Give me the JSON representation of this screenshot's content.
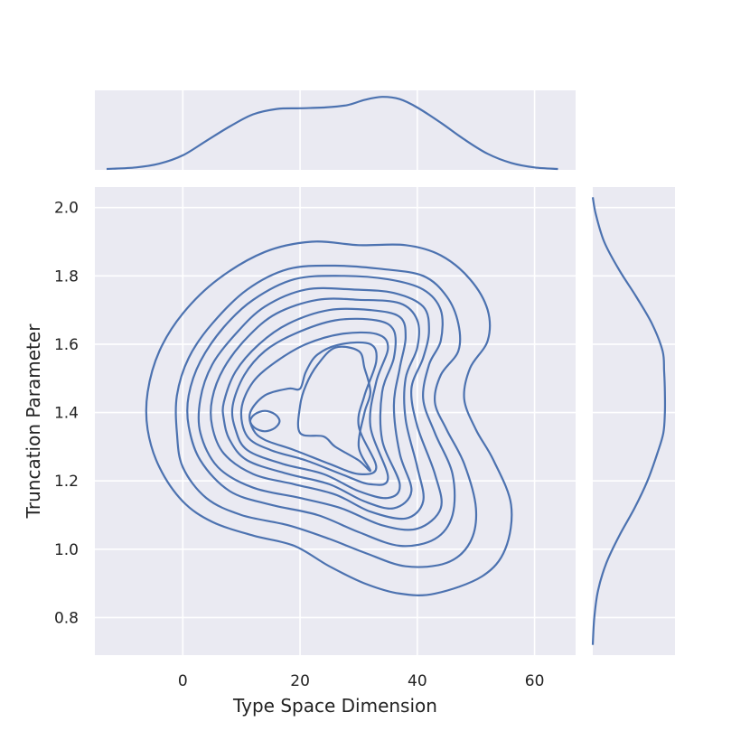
{
  "chart_data": {
    "type": "kde-jointplot",
    "title": "",
    "xlabel": "Type Space Dimension",
    "ylabel": "Truncation Parameter",
    "xlim": [
      -15,
      67
    ],
    "ylim": [
      0.69,
      2.06
    ],
    "x_ticks": [
      "0",
      "20",
      "40",
      "60"
    ],
    "x_tick_values": [
      0,
      20,
      40,
      60
    ],
    "y_ticks": [
      "0.8",
      "1.0",
      "1.2",
      "1.4",
      "1.6",
      "1.8",
      "2.0"
    ],
    "y_tick_values": [
      0.8,
      1.0,
      1.2,
      1.4,
      1.6,
      1.8,
      2.0
    ],
    "grid": true,
    "style": {
      "background": "#eaeaf2",
      "line_color": "#4c72b0",
      "grid_color": "#ffffff"
    },
    "contour_levels": 10,
    "contours": [
      [
        [
          -6,
          1.46
        ],
        [
          -4,
          1.58
        ],
        [
          0,
          1.69
        ],
        [
          6,
          1.79
        ],
        [
          14,
          1.87
        ],
        [
          22,
          1.9
        ],
        [
          30,
          1.89
        ],
        [
          38,
          1.89
        ],
        [
          44,
          1.86
        ],
        [
          49,
          1.79
        ],
        [
          52,
          1.7
        ],
        [
          52,
          1.61
        ],
        [
          49,
          1.53
        ],
        [
          48,
          1.44
        ],
        [
          50,
          1.35
        ],
        [
          53,
          1.26
        ],
        [
          56,
          1.13
        ],
        [
          55,
          1.0
        ],
        [
          51,
          0.92
        ],
        [
          43,
          0.87
        ],
        [
          37,
          0.87
        ],
        [
          31,
          0.9
        ],
        [
          25,
          0.95
        ],
        [
          19,
          1.01
        ],
        [
          12,
          1.04
        ],
        [
          5,
          1.08
        ],
        [
          0,
          1.14
        ],
        [
          -4,
          1.24
        ],
        [
          -6,
          1.35
        ],
        [
          -6,
          1.46
        ]
      ],
      [
        [
          -1,
          1.45
        ],
        [
          1,
          1.56
        ],
        [
          5,
          1.66
        ],
        [
          11,
          1.76
        ],
        [
          18,
          1.82
        ],
        [
          26,
          1.83
        ],
        [
          34,
          1.82
        ],
        [
          41,
          1.8
        ],
        [
          45,
          1.74
        ],
        [
          47,
          1.66
        ],
        [
          47,
          1.58
        ],
        [
          44,
          1.51
        ],
        [
          43,
          1.43
        ],
        [
          45,
          1.35
        ],
        [
          48,
          1.25
        ],
        [
          50,
          1.12
        ],
        [
          49,
          1.02
        ],
        [
          45,
          0.96
        ],
        [
          38,
          0.95
        ],
        [
          31,
          0.99
        ],
        [
          25,
          1.03
        ],
        [
          18,
          1.07
        ],
        [
          10,
          1.1
        ],
        [
          4,
          1.15
        ],
        [
          0,
          1.24
        ],
        [
          -1,
          1.34
        ],
        [
          -1,
          1.45
        ]
      ],
      [
        [
          1,
          1.45
        ],
        [
          3,
          1.55
        ],
        [
          7,
          1.65
        ],
        [
          12,
          1.73
        ],
        [
          19,
          1.79
        ],
        [
          27,
          1.8
        ],
        [
          35,
          1.79
        ],
        [
          41,
          1.76
        ],
        [
          44,
          1.7
        ],
        [
          44,
          1.61
        ],
        [
          42,
          1.54
        ],
        [
          41,
          1.44
        ],
        [
          43,
          1.34
        ],
        [
          46,
          1.22
        ],
        [
          46,
          1.1
        ],
        [
          43,
          1.03
        ],
        [
          37,
          1.01
        ],
        [
          30,
          1.05
        ],
        [
          23,
          1.1
        ],
        [
          15,
          1.13
        ],
        [
          8,
          1.17
        ],
        [
          3,
          1.26
        ],
        [
          1,
          1.36
        ],
        [
          1,
          1.45
        ]
      ],
      [
        [
          3,
          1.44
        ],
        [
          5,
          1.54
        ],
        [
          9,
          1.63
        ],
        [
          14,
          1.71
        ],
        [
          21,
          1.76
        ],
        [
          29,
          1.76
        ],
        [
          36,
          1.75
        ],
        [
          41,
          1.71
        ],
        [
          42,
          1.64
        ],
        [
          41,
          1.56
        ],
        [
          39,
          1.47
        ],
        [
          40,
          1.36
        ],
        [
          43,
          1.22
        ],
        [
          44,
          1.12
        ],
        [
          40,
          1.06
        ],
        [
          34,
          1.07
        ],
        [
          27,
          1.12
        ],
        [
          20,
          1.15
        ],
        [
          12,
          1.18
        ],
        [
          6,
          1.24
        ],
        [
          3,
          1.34
        ],
        [
          3,
          1.44
        ]
      ],
      [
        [
          5,
          1.44
        ],
        [
          7,
          1.53
        ],
        [
          11,
          1.62
        ],
        [
          16,
          1.69
        ],
        [
          23,
          1.73
        ],
        [
          30,
          1.73
        ],
        [
          37,
          1.72
        ],
        [
          40,
          1.67
        ],
        [
          40,
          1.59
        ],
        [
          38,
          1.5
        ],
        [
          38,
          1.38
        ],
        [
          40,
          1.24
        ],
        [
          41,
          1.14
        ],
        [
          38,
          1.09
        ],
        [
          32,
          1.11
        ],
        [
          26,
          1.16
        ],
        [
          19,
          1.19
        ],
        [
          12,
          1.22
        ],
        [
          7,
          1.28
        ],
        [
          5,
          1.36
        ],
        [
          5,
          1.44
        ]
      ],
      [
        [
          7,
          1.43
        ],
        [
          9,
          1.52
        ],
        [
          13,
          1.6
        ],
        [
          18,
          1.66
        ],
        [
          25,
          1.7
        ],
        [
          32,
          1.7
        ],
        [
          37,
          1.68
        ],
        [
          38,
          1.62
        ],
        [
          37,
          1.53
        ],
        [
          36,
          1.42
        ],
        [
          37,
          1.28
        ],
        [
          39,
          1.17
        ],
        [
          36,
          1.12
        ],
        [
          31,
          1.14
        ],
        [
          25,
          1.19
        ],
        [
          18,
          1.22
        ],
        [
          11,
          1.26
        ],
        [
          8,
          1.32
        ],
        [
          7,
          1.38
        ],
        [
          7,
          1.43
        ]
      ],
      [
        [
          8.5,
          1.42
        ],
        [
          10.5,
          1.51
        ],
        [
          14,
          1.58
        ],
        [
          19,
          1.63
        ],
        [
          26,
          1.67
        ],
        [
          33,
          1.67
        ],
        [
          36,
          1.64
        ],
        [
          36,
          1.56
        ],
        [
          34,
          1.46
        ],
        [
          34,
          1.32
        ],
        [
          37,
          1.19
        ],
        [
          35,
          1.15
        ],
        [
          30,
          1.17
        ],
        [
          24,
          1.22
        ],
        [
          17,
          1.25
        ],
        [
          11,
          1.29
        ],
        [
          9,
          1.35
        ],
        [
          8.5,
          1.42
        ]
      ],
      [
        [
          10,
          1.41
        ],
        [
          12,
          1.49
        ],
        [
          16,
          1.55
        ],
        [
          21,
          1.6
        ],
        [
          27,
          1.63
        ],
        [
          33,
          1.63
        ],
        [
          35,
          1.59
        ],
        [
          33,
          1.49
        ],
        [
          32,
          1.36
        ],
        [
          35,
          1.21
        ],
        [
          32,
          1.19
        ],
        [
          27,
          1.22
        ],
        [
          21,
          1.26
        ],
        [
          15,
          1.29
        ],
        [
          11,
          1.33
        ],
        [
          10,
          1.41
        ]
      ],
      [
        [
          11.5,
          1.4
        ],
        [
          14,
          1.45
        ],
        [
          18,
          1.47
        ],
        [
          20,
          1.47
        ],
        [
          21,
          1.52
        ],
        [
          23,
          1.57
        ],
        [
          27,
          1.6
        ],
        [
          32,
          1.6
        ],
        [
          33,
          1.55
        ],
        [
          31,
          1.45
        ],
        [
          30,
          1.36
        ],
        [
          33,
          1.24
        ],
        [
          30,
          1.22
        ],
        [
          25,
          1.25
        ],
        [
          19,
          1.29
        ],
        [
          14,
          1.32
        ],
        [
          12,
          1.35
        ],
        [
          11.5,
          1.4
        ]
      ],
      [
        [
          20,
          1.34
        ],
        [
          24,
          1.33
        ],
        [
          26,
          1.3
        ],
        [
          30,
          1.26
        ],
        [
          32,
          1.23
        ],
        [
          30,
          1.3
        ],
        [
          31,
          1.4
        ],
        [
          32,
          1.46
        ],
        [
          31,
          1.53
        ],
        [
          30,
          1.58
        ],
        [
          26,
          1.59
        ],
        [
          23,
          1.54
        ],
        [
          21,
          1.48
        ],
        [
          20,
          1.42
        ],
        [
          20,
          1.34
        ]
      ],
      [
        [
          11.5,
          1.375
        ],
        [
          12.3,
          1.395
        ],
        [
          14,
          1.405
        ],
        [
          15.7,
          1.395
        ],
        [
          16.5,
          1.375
        ],
        [
          15.7,
          1.355
        ],
        [
          14,
          1.345
        ],
        [
          12.3,
          1.355
        ],
        [
          11.5,
          1.375
        ]
      ]
    ],
    "marginal_x": {
      "x": [
        -13,
        -8,
        -4,
        0,
        4,
        8,
        12,
        16,
        20,
        24,
        28,
        31,
        34,
        37,
        40,
        44,
        48,
        52,
        56,
        60,
        64
      ],
      "density": [
        0.0,
        0.02,
        0.07,
        0.18,
        0.37,
        0.56,
        0.72,
        0.79,
        0.8,
        0.81,
        0.84,
        0.91,
        0.95,
        0.92,
        0.81,
        0.61,
        0.39,
        0.2,
        0.08,
        0.02,
        0.0
      ]
    },
    "marginal_y": {
      "y": [
        0.72,
        0.8,
        0.88,
        0.96,
        1.04,
        1.12,
        1.2,
        1.28,
        1.34,
        1.4,
        1.46,
        1.52,
        1.58,
        1.66,
        1.74,
        1.82,
        1.9,
        1.98,
        2.03
      ],
      "density": [
        0.0,
        0.02,
        0.07,
        0.18,
        0.35,
        0.55,
        0.72,
        0.85,
        0.93,
        0.95,
        0.95,
        0.94,
        0.92,
        0.78,
        0.57,
        0.34,
        0.15,
        0.04,
        0.0
      ]
    }
  }
}
